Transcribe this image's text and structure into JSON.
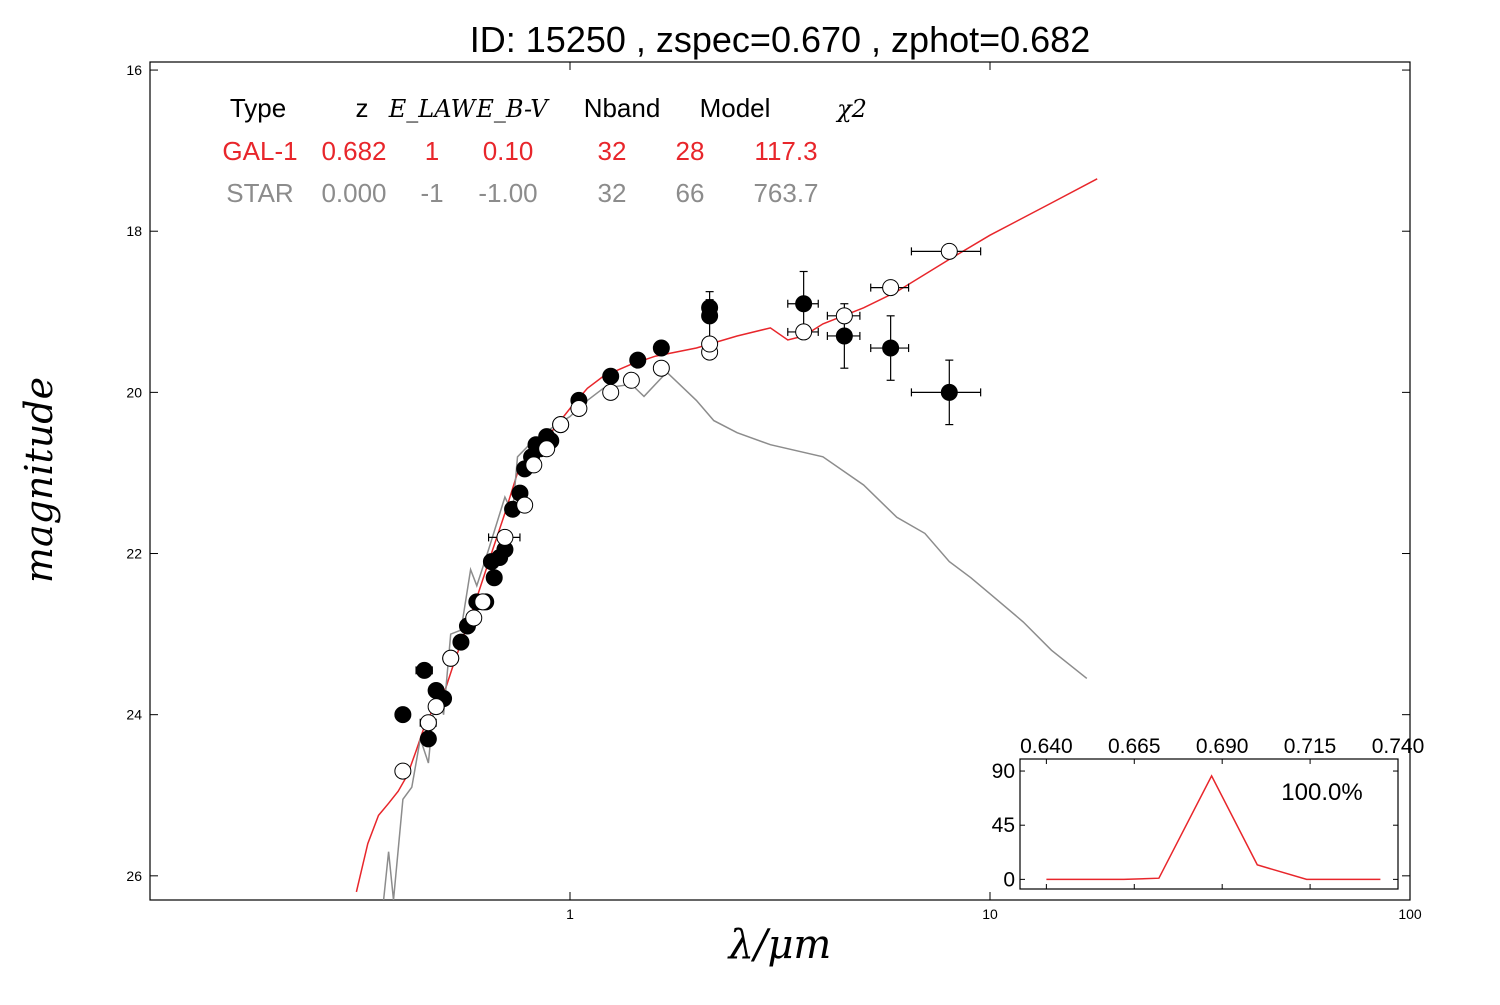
{
  "chart_data": [
    {
      "type": "scatter",
      "title": "ID:  15250 , zspec=0.670 , zphot=0.682",
      "xlabel": "λ/μm",
      "ylabel": "magnitude",
      "xscale": "log",
      "xlim": [
        0.1,
        100
      ],
      "ylim": [
        26.3,
        15.9
      ],
      "yaxis_inverted": true,
      "xticks": [
        {
          "v": 1,
          "label": "1"
        },
        {
          "v": 10,
          "label": "10"
        },
        {
          "v": 100,
          "label": "100"
        }
      ],
      "yticks": [
        {
          "v": 16,
          "label": "16"
        },
        {
          "v": 18,
          "label": "18"
        },
        {
          "v": 20,
          "label": "20"
        },
        {
          "v": 22,
          "label": "22"
        },
        {
          "v": 24,
          "label": "24"
        },
        {
          "v": 26,
          "label": "26"
        }
      ],
      "colors": {
        "galaxy": "#e8262b",
        "star": "#8c8c8c",
        "text": "#000000"
      },
      "fit_table": {
        "headers": [
          "Type",
          "z",
          "E_LAW",
          "E_B-V",
          "Nband",
          "Model",
          "χ2"
        ],
        "rows": [
          {
            "series": "galaxy",
            "cells": [
              "GAL-1",
              "0.682",
              "1",
              "0.10",
              "32",
              "28",
              "117.3"
            ]
          },
          {
            "series": "star",
            "cells": [
              "STAR",
              "0.000",
              "-1",
              "-1.00",
              "32",
              "66",
              "763.7"
            ]
          }
        ]
      },
      "series": [
        {
          "name": "GAL-1",
          "kind": "model-line",
          "color": "#e8262b",
          "points": [
            [
              0.31,
              26.2
            ],
            [
              0.33,
              25.6
            ],
            [
              0.35,
              25.25
            ],
            [
              0.37,
              25.1
            ],
            [
              0.39,
              24.95
            ],
            [
              0.41,
              24.75
            ],
            [
              0.43,
              24.45
            ],
            [
              0.45,
              24.15
            ],
            [
              0.47,
              23.95
            ],
            [
              0.5,
              23.75
            ],
            [
              0.53,
              23.35
            ],
            [
              0.56,
              23.0
            ],
            [
              0.6,
              22.55
            ],
            [
              0.65,
              22.0
            ],
            [
              0.7,
              21.5
            ],
            [
              0.75,
              21.0
            ],
            [
              0.8,
              20.75
            ],
            [
              0.9,
              20.5
            ],
            [
              1.0,
              20.2
            ],
            [
              1.1,
              19.95
            ],
            [
              1.2,
              19.8
            ],
            [
              1.4,
              19.65
            ],
            [
              1.6,
              19.55
            ],
            [
              2.0,
              19.45
            ],
            [
              2.5,
              19.3
            ],
            [
              3.0,
              19.2
            ],
            [
              3.3,
              19.35
            ],
            [
              3.6,
              19.3
            ],
            [
              4.0,
              19.15
            ],
            [
              5.0,
              18.95
            ],
            [
              6.0,
              18.75
            ],
            [
              8.0,
              18.35
            ],
            [
              10.0,
              18.05
            ],
            [
              14.0,
              17.65
            ],
            [
              18.0,
              17.35
            ]
          ]
        },
        {
          "name": "STAR",
          "kind": "model-line",
          "color": "#8c8c8c",
          "points": [
            [
              0.36,
              26.3
            ],
            [
              0.37,
              25.7
            ],
            [
              0.38,
              26.3
            ],
            [
              0.4,
              25.05
            ],
            [
              0.42,
              24.9
            ],
            [
              0.44,
              24.3
            ],
            [
              0.46,
              24.6
            ],
            [
              0.48,
              23.6
            ],
            [
              0.5,
              24.0
            ],
            [
              0.52,
              23.0
            ],
            [
              0.55,
              22.95
            ],
            [
              0.58,
              22.2
            ],
            [
              0.6,
              22.4
            ],
            [
              0.64,
              21.95
            ],
            [
              0.7,
              21.3
            ],
            [
              0.73,
              21.5
            ],
            [
              0.75,
              20.8
            ],
            [
              0.8,
              20.65
            ],
            [
              0.9,
              20.45
            ],
            [
              1.0,
              20.3
            ],
            [
              1.1,
              20.1
            ],
            [
              1.2,
              19.95
            ],
            [
              1.4,
              19.9
            ],
            [
              1.5,
              20.05
            ],
            [
              1.7,
              19.75
            ],
            [
              2.0,
              20.1
            ],
            [
              2.2,
              20.35
            ],
            [
              2.5,
              20.5
            ],
            [
              3.0,
              20.65
            ],
            [
              4.0,
              20.8
            ],
            [
              5.0,
              21.15
            ],
            [
              6.0,
              21.55
            ],
            [
              7.0,
              21.75
            ],
            [
              8.0,
              22.1
            ],
            [
              9.0,
              22.3
            ],
            [
              10.0,
              22.5
            ],
            [
              12.0,
              22.85
            ],
            [
              14.0,
              23.2
            ],
            [
              17.0,
              23.55
            ]
          ]
        },
        {
          "name": "observed",
          "kind": "filled-points",
          "color": "#000000",
          "points": [
            {
              "x": 0.4,
              "y": 24.0,
              "xerr": 0.01,
              "yerr": 0.08
            },
            {
              "x": 0.45,
              "y": 23.45,
              "xerr": 0.02,
              "yerr": 0.05
            },
            {
              "x": 0.46,
              "y": 24.3,
              "xerr": 0.01,
              "yerr": 0.05
            },
            {
              "x": 0.48,
              "y": 23.7,
              "xerr": 0.01,
              "yerr": 0.05
            },
            {
              "x": 0.5,
              "y": 23.8,
              "xerr": 0.01,
              "yerr": 0.05
            },
            {
              "x": 0.52,
              "y": 23.3,
              "xerr": 0.01,
              "yerr": 0.05
            },
            {
              "x": 0.55,
              "y": 23.1,
              "xerr": 0.01,
              "yerr": 0.05
            },
            {
              "x": 0.57,
              "y": 22.9,
              "xerr": 0.01,
              "yerr": 0.05
            },
            {
              "x": 0.6,
              "y": 22.6,
              "xerr": 0.02,
              "yerr": 0.05
            },
            {
              "x": 0.63,
              "y": 22.6,
              "xerr": 0.02,
              "yerr": 0.05
            },
            {
              "x": 0.65,
              "y": 22.1,
              "xerr": 0.02,
              "yerr": 0.05
            },
            {
              "x": 0.66,
              "y": 22.3,
              "xerr": 0.02,
              "yerr": 0.05
            },
            {
              "x": 0.68,
              "y": 22.05,
              "xerr": 0.02,
              "yerr": 0.05
            },
            {
              "x": 0.7,
              "y": 21.95,
              "xerr": 0.02,
              "yerr": 0.05
            },
            {
              "x": 0.73,
              "y": 21.45,
              "xerr": 0.02,
              "yerr": 0.05
            },
            {
              "x": 0.76,
              "y": 21.25,
              "xerr": 0.02,
              "yerr": 0.05
            },
            {
              "x": 0.78,
              "y": 20.95,
              "xerr": 0.02,
              "yerr": 0.05
            },
            {
              "x": 0.81,
              "y": 20.8,
              "xerr": 0.02,
              "yerr": 0.05
            },
            {
              "x": 0.83,
              "y": 20.65,
              "xerr": 0.02,
              "yerr": 0.05
            },
            {
              "x": 0.85,
              "y": 20.7,
              "xerr": 0.02,
              "yerr": 0.05
            },
            {
              "x": 0.88,
              "y": 20.55,
              "xerr": 0.02,
              "yerr": 0.05
            },
            {
              "x": 0.9,
              "y": 20.6,
              "xerr": 0.02,
              "yerr": 0.05
            },
            {
              "x": 0.95,
              "y": 20.4,
              "xerr": 0.03,
              "yerr": 0.05
            },
            {
              "x": 1.05,
              "y": 20.1,
              "xerr": 0.03,
              "yerr": 0.05
            },
            {
              "x": 1.25,
              "y": 19.8,
              "xerr": 0.04,
              "yerr": 0.05
            },
            {
              "x": 1.45,
              "y": 19.6,
              "xerr": 0.05,
              "yerr": 0.05
            },
            {
              "x": 1.65,
              "y": 19.45,
              "xerr": 0.06,
              "yerr": 0.05
            },
            {
              "x": 2.15,
              "y": 19.05,
              "xerr": 0.08,
              "yerr": 0.3
            },
            {
              "x": 2.15,
              "y": 18.95,
              "xerr": 0.08,
              "yerr": 0.1
            },
            {
              "x": 3.6,
              "y": 18.9,
              "xerr": 0.3,
              "yerr": 0.4
            },
            {
              "x": 4.5,
              "y": 19.3,
              "xerr": 0.4,
              "yerr": 0.4
            },
            {
              "x": 5.8,
              "y": 19.45,
              "xerr": 0.6,
              "yerr": 0.4
            },
            {
              "x": 8.0,
              "y": 20.0,
              "xerr": 1.5,
              "yerr": 0.4
            }
          ]
        },
        {
          "name": "model-magnitudes",
          "kind": "open-points",
          "color": "#000000",
          "points": [
            {
              "x": 0.4,
              "y": 24.7,
              "xerr": 0.01
            },
            {
              "x": 0.46,
              "y": 24.1,
              "xerr": 0.02
            },
            {
              "x": 0.48,
              "y": 23.9,
              "xerr": 0.01
            },
            {
              "x": 0.52,
              "y": 23.3,
              "xerr": 0.01
            },
            {
              "x": 0.59,
              "y": 22.8,
              "xerr": 0.02
            },
            {
              "x": 0.62,
              "y": 22.6,
              "xerr": 0.02
            },
            {
              "x": 0.7,
              "y": 21.8,
              "xerr": 0.06
            },
            {
              "x": 0.78,
              "y": 21.4,
              "xerr": 0.02
            },
            {
              "x": 0.82,
              "y": 20.9,
              "xerr": 0.02
            },
            {
              "x": 0.88,
              "y": 20.7,
              "xerr": 0.02
            },
            {
              "x": 0.95,
              "y": 20.4,
              "xerr": 0.03
            },
            {
              "x": 1.05,
              "y": 20.2,
              "xerr": 0.03
            },
            {
              "x": 1.25,
              "y": 20.0,
              "xerr": 0.04
            },
            {
              "x": 1.4,
              "y": 19.85,
              "xerr": 0.05
            },
            {
              "x": 1.65,
              "y": 19.7,
              "xerr": 0.06
            },
            {
              "x": 2.15,
              "y": 19.5,
              "xerr": 0.08
            },
            {
              "x": 2.15,
              "y": 19.4,
              "xerr": 0.08
            },
            {
              "x": 3.6,
              "y": 19.25,
              "xerr": 0.3
            },
            {
              "x": 4.5,
              "y": 19.05,
              "xerr": 0.4
            },
            {
              "x": 5.8,
              "y": 18.7,
              "xerr": 0.6
            },
            {
              "x": 8.0,
              "y": 18.25,
              "xerr": 1.5
            }
          ]
        }
      ]
    },
    {
      "type": "line",
      "title": "",
      "annotation": "100.0%",
      "xlim": [
        0.6325,
        0.74
      ],
      "ylim": [
        -8,
        100
      ],
      "xticks": [
        {
          "v": 0.64,
          "label": "0.640"
        },
        {
          "v": 0.665,
          "label": "0.665"
        },
        {
          "v": 0.69,
          "label": "0.690"
        },
        {
          "v": 0.715,
          "label": "0.715"
        },
        {
          "v": 0.74,
          "label": "0.740"
        }
      ],
      "yticks": [
        {
          "v": 0,
          "label": "0"
        },
        {
          "v": 45,
          "label": "45"
        },
        {
          "v": 90,
          "label": "90"
        }
      ],
      "color": "#e8262b",
      "x": [
        0.64,
        0.662,
        0.672,
        0.687,
        0.7,
        0.714,
        0.735
      ],
      "y": [
        0,
        0,
        1,
        86,
        12,
        0,
        0
      ]
    }
  ]
}
